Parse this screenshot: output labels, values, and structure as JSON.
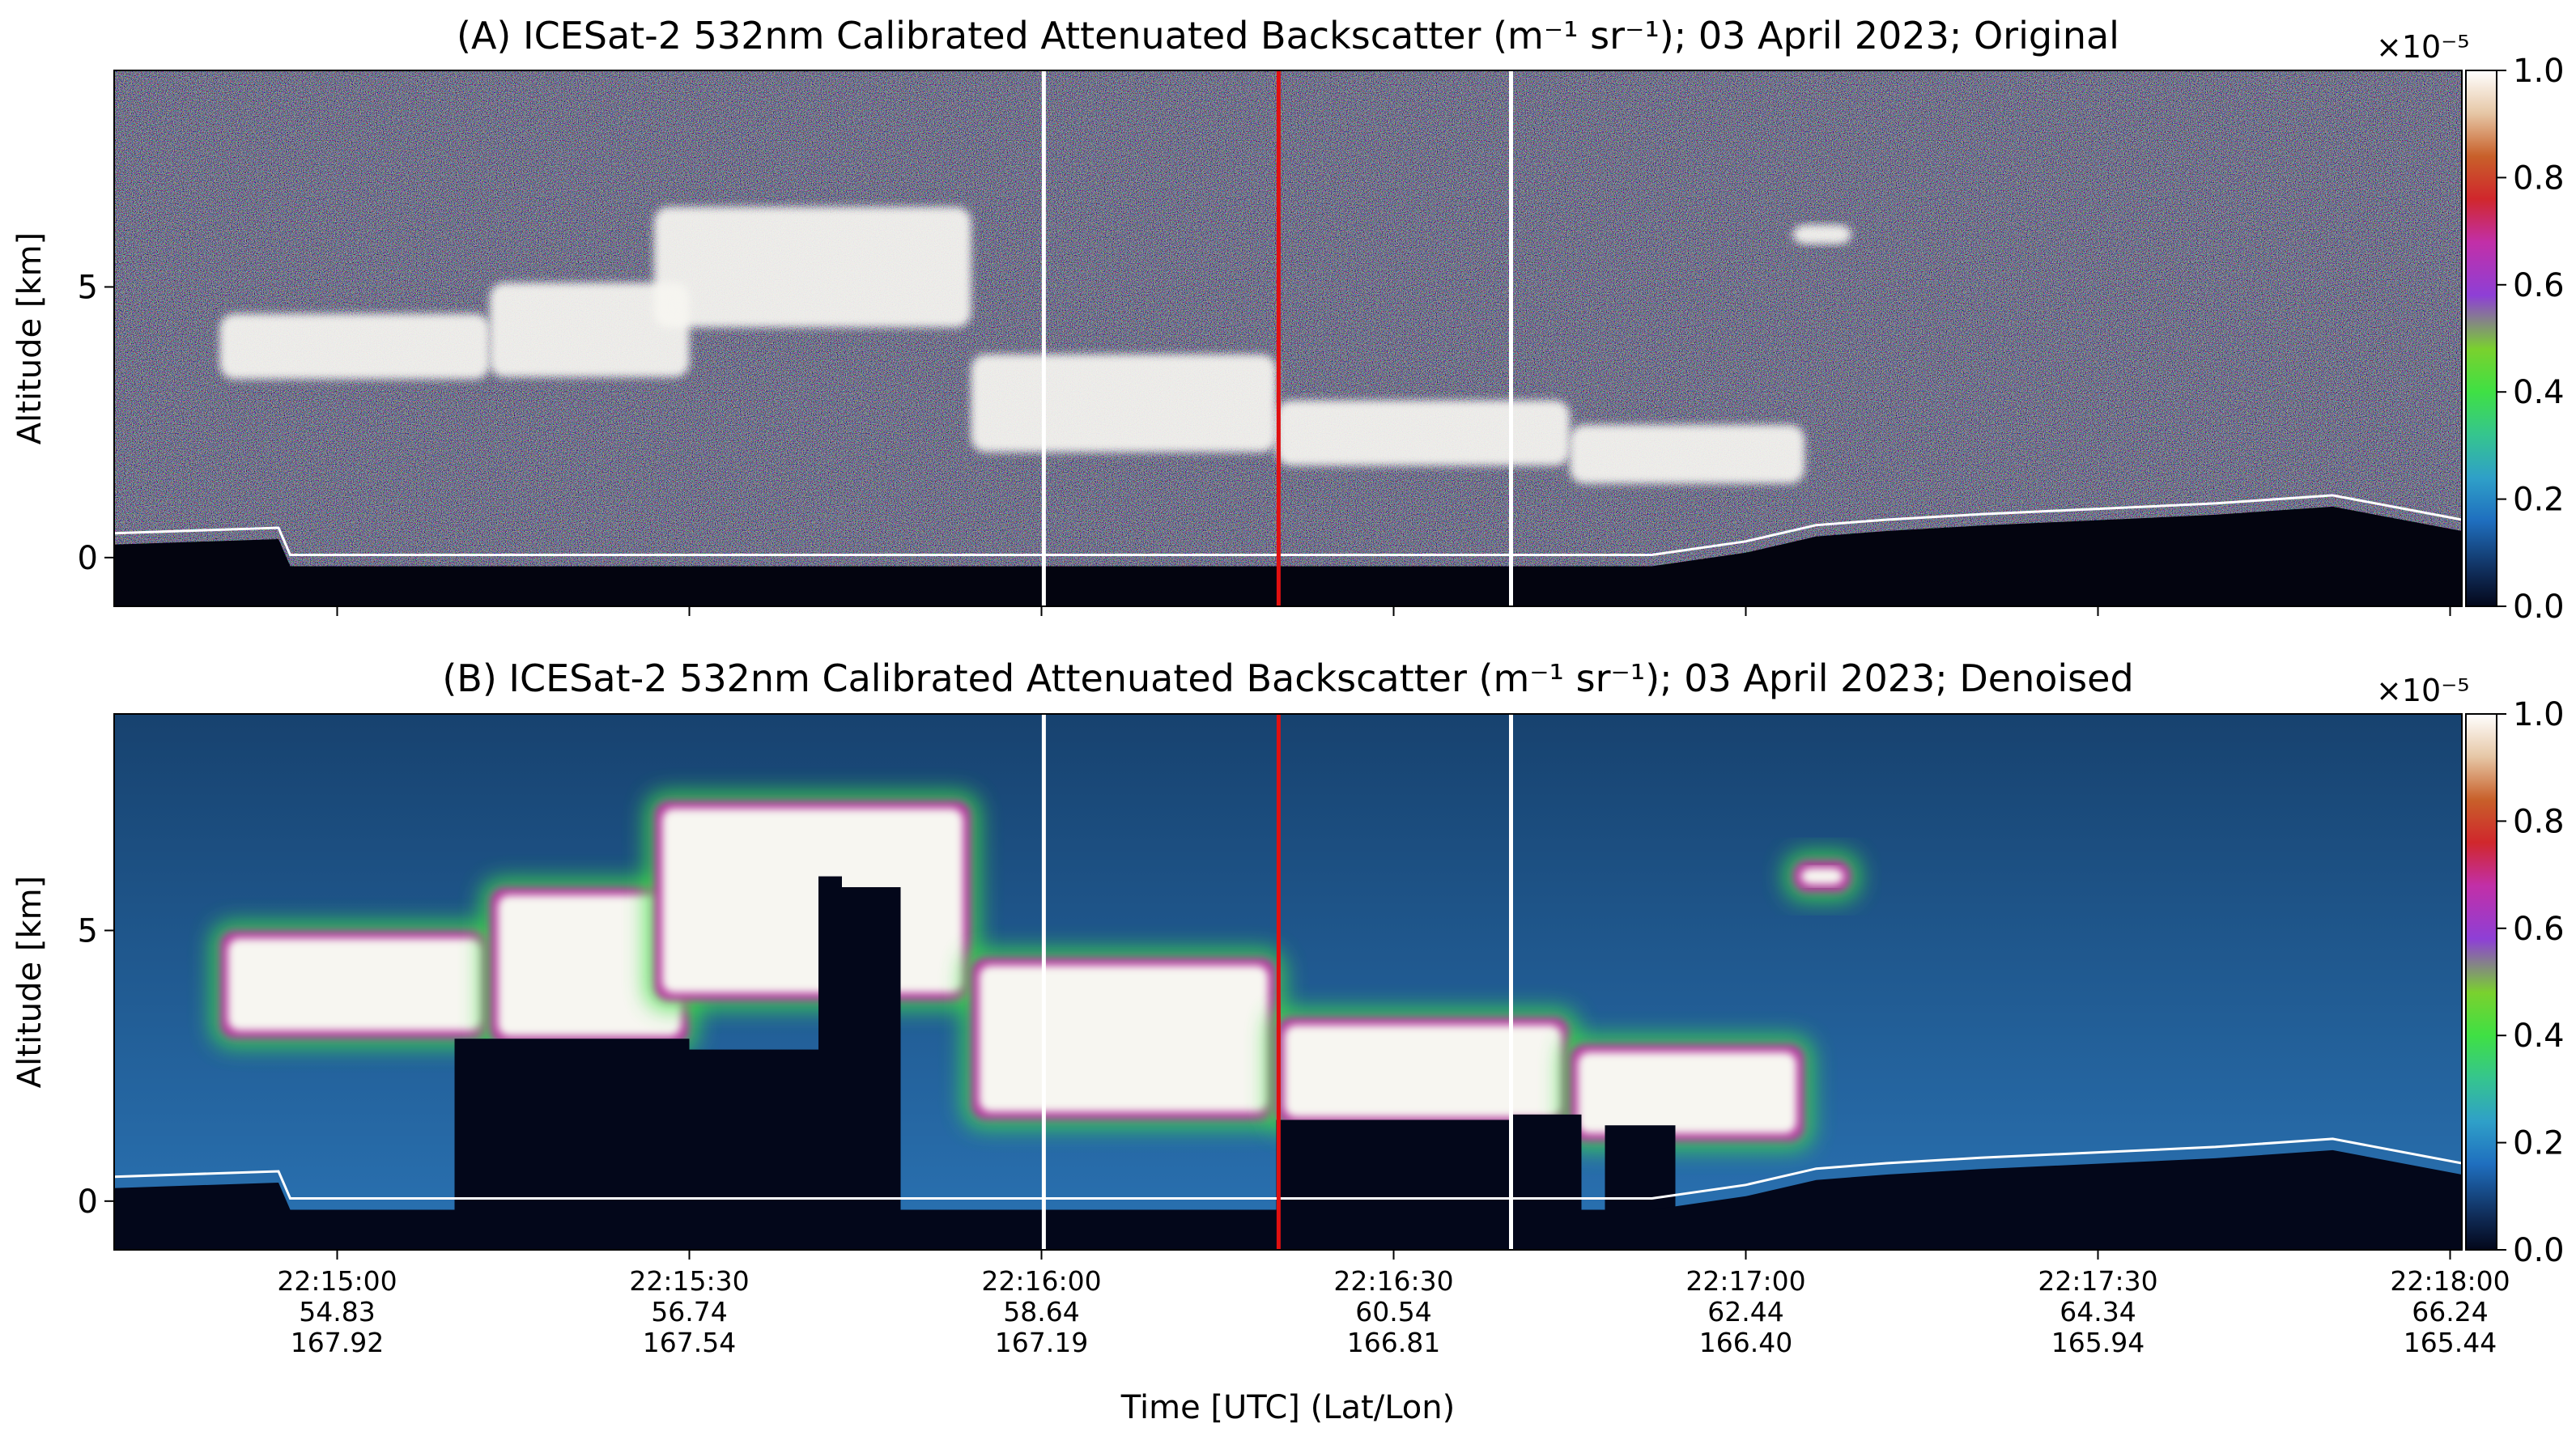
{
  "chart_data": [
    {
      "type": "heatmap",
      "title": "(A) ICESat-2 532nm Calibrated Attenuated Backscatter (m⁻¹ sr⁻¹); 03 April 2023; Original",
      "ylabel": "Altitude [km]",
      "xlabel": "",
      "yticks": [
        {
          "value": 0,
          "label": "0"
        },
        {
          "value": 5,
          "label": "5"
        }
      ],
      "ylim": [
        -0.9,
        9.0
      ],
      "x_tick_labels": [],
      "colorbar": {
        "ticks": [
          "0.0",
          "0.2",
          "0.4",
          "0.6",
          "0.8",
          "1.0"
        ],
        "exponent": "×10⁻⁵",
        "range": [
          0.0,
          1.0
        ]
      },
      "vertical_lines": [
        {
          "time": "22:16:00.2",
          "color": "#ffffff"
        },
        {
          "time": "22:16:20.2",
          "color": "#e01010"
        },
        {
          "time": "22:16:40.0",
          "color": "#ffffff"
        }
      ],
      "noise": "high",
      "colors": {
        "background": "#040617",
        "cloud": "#f7f6f1"
      }
    },
    {
      "type": "heatmap",
      "title": "(B) ICESat-2 532nm Calibrated Attenuated Backscatter (m⁻¹ sr⁻¹); 03 April 2023; Denoised",
      "ylabel": "Altitude [km]",
      "xlabel": "Time [UTC] (Lat/Lon)",
      "yticks": [
        {
          "value": 0,
          "label": "0"
        },
        {
          "value": 5,
          "label": "5"
        }
      ],
      "ylim": [
        -0.9,
        9.0
      ],
      "x_tick_labels": [
        {
          "time": "22:15:00",
          "lat": "54.83",
          "lon": "167.92"
        },
        {
          "time": "22:15:30",
          "lat": "56.74",
          "lon": "167.54"
        },
        {
          "time": "22:16:00",
          "lat": "58.64",
          "lon": "167.19"
        },
        {
          "time": "22:16:30",
          "lat": "60.54",
          "lon": "166.81"
        },
        {
          "time": "22:17:00",
          "lat": "62.44",
          "lon": "166.40"
        },
        {
          "time": "22:17:30",
          "lat": "64.34",
          "lon": "165.94"
        },
        {
          "time": "22:18:00",
          "lat": "66.24",
          "lon": "165.44"
        }
      ],
      "colorbar": {
        "ticks": [
          "0.0",
          "0.2",
          "0.4",
          "0.6",
          "0.8",
          "1.0"
        ],
        "exponent": "×10⁻⁵",
        "range": [
          0.0,
          1.0
        ]
      },
      "vertical_lines": [
        {
          "time": "22:16:00.2",
          "color": "#ffffff"
        },
        {
          "time": "22:16:20.2",
          "color": "#e01010"
        },
        {
          "time": "22:16:40.0",
          "color": "#ffffff"
        }
      ],
      "noise": "low",
      "colors": {
        "background": "#1f5e96",
        "cloud": "#f7f6f1"
      }
    }
  ],
  "shared": {
    "time_range": [
      "22:14:41",
      "22:18:01"
    ],
    "colormap_stops": [
      "#03071a",
      "#0f2a55",
      "#1f6fbf",
      "#2fa0c8",
      "#35c58e",
      "#3fe044",
      "#7ad12e",
      "#8e3fd6",
      "#c22fa7",
      "#d0272c",
      "#c8602a",
      "#e6c7a6",
      "#ffffff"
    ],
    "ground_line": [
      {
        "t": "22:14:41",
        "alt": 0.45
      },
      {
        "t": "22:14:55",
        "alt": 0.55
      },
      {
        "t": "22:14:56",
        "alt": 0.05
      },
      {
        "t": "22:15:10",
        "alt": 0.05
      },
      {
        "t": "22:16:52",
        "alt": 0.05
      },
      {
        "t": "22:17:00",
        "alt": 0.3
      },
      {
        "t": "22:17:06",
        "alt": 0.6
      },
      {
        "t": "22:17:12",
        "alt": 0.7
      },
      {
        "t": "22:17:20",
        "alt": 0.8
      },
      {
        "t": "22:17:30",
        "alt": 0.9
      },
      {
        "t": "22:17:40",
        "alt": 1.0
      },
      {
        "t": "22:17:50",
        "alt": 1.15
      },
      {
        "t": "22:18:01",
        "alt": 0.7
      }
    ],
    "clouds": [
      {
        "t0": "22:14:50",
        "t1": "22:15:13",
        "base": 3.0,
        "top": 5.0
      },
      {
        "t0": "22:15:13",
        "t1": "22:15:30",
        "base": 2.9,
        "top": 5.8
      },
      {
        "t0": "22:15:27",
        "t1": "22:15:54",
        "base": 3.7,
        "top": 7.4
      },
      {
        "t0": "22:15:54",
        "t1": "22:16:20",
        "base": 1.5,
        "top": 4.5
      },
      {
        "t0": "22:16:20",
        "t1": "22:16:45",
        "base": 1.4,
        "top": 3.4
      },
      {
        "t0": "22:16:45",
        "t1": "22:17:05",
        "base": 1.1,
        "top": 2.9
      },
      {
        "t0": "22:17:04",
        "t1": "22:17:09",
        "base": 5.7,
        "top": 6.3
      }
    ]
  }
}
